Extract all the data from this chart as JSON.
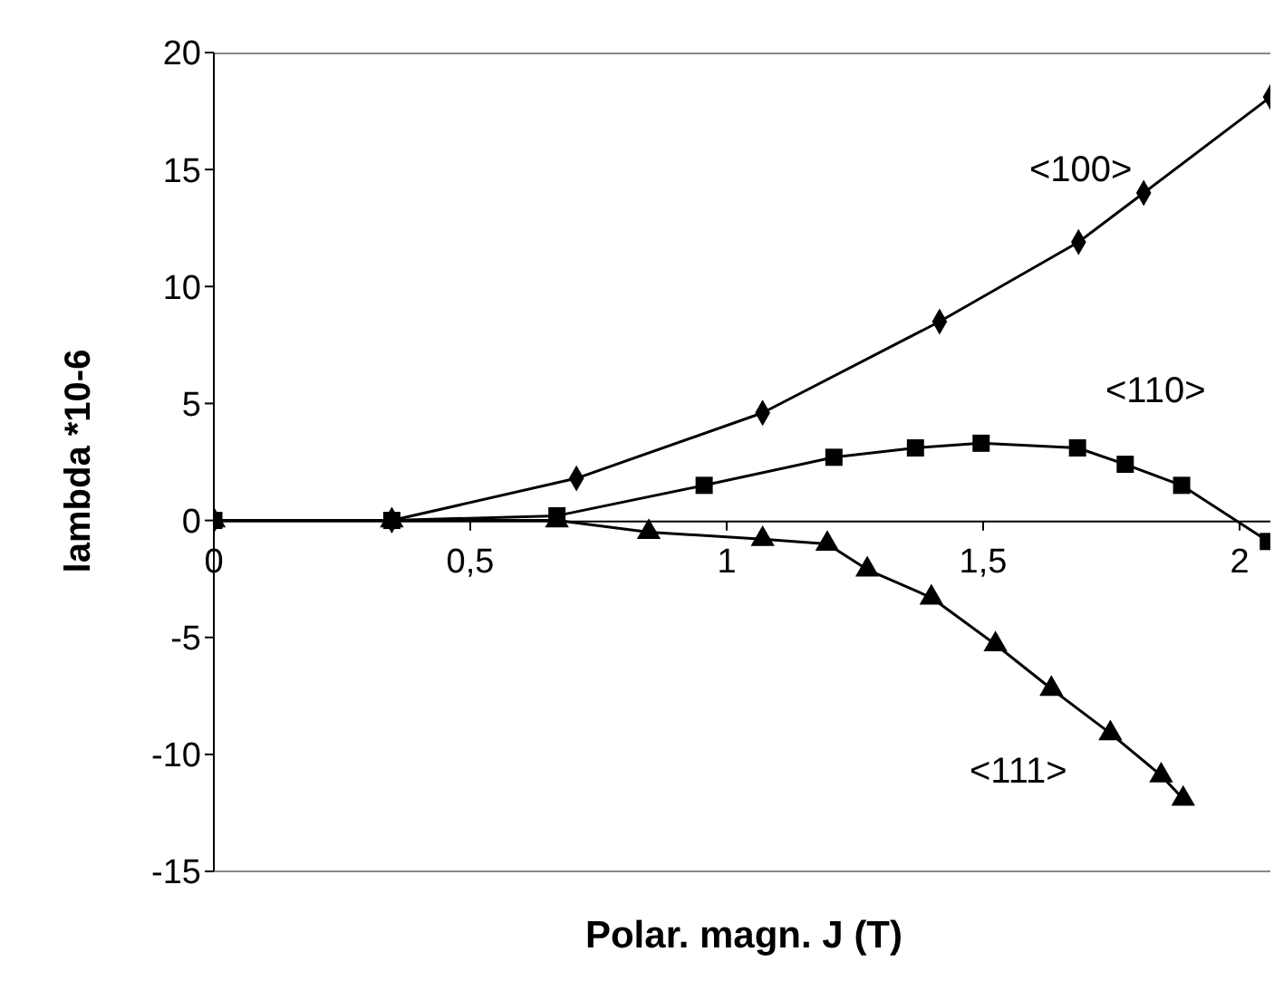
{
  "chart_data": {
    "type": "line",
    "xlabel": "Polar. magn. J (T)",
    "ylabel": "lambda *10-6",
    "xlim": [
      0,
      2.06
    ],
    "xticks": [
      0,
      {
        "value": 0.5,
        "label": "0,5"
      },
      1,
      {
        "value": 1.5,
        "label": "1,5"
      },
      2
    ],
    "ylim": [
      -15,
      20
    ],
    "yticks": [
      -15,
      -10,
      -5,
      0,
      5,
      10,
      15,
      20
    ],
    "grid": false,
    "legend": false,
    "series": [
      {
        "name": "<100>",
        "color": "#000000",
        "marker": "diamond",
        "x": [
          0,
          0.347,
          0.707,
          1.07,
          1.415,
          1.686,
          1.813,
          2.06
        ],
        "values": [
          0,
          0,
          1.8,
          4.6,
          8.5,
          11.9,
          14.0,
          18.1
        ]
      },
      {
        "name": "<110>",
        "color": "#000000",
        "marker": "square",
        "x": [
          0,
          0.347,
          0.669,
          0.956,
          1.209,
          1.368,
          1.496,
          1.684,
          1.777,
          1.887,
          2.056
        ],
        "values": [
          0,
          0,
          0.2,
          1.5,
          2.7,
          3.1,
          3.3,
          3.1,
          2.4,
          1.5,
          -0.9
        ]
      },
      {
        "name": "<111>",
        "color": "#000000",
        "marker": "triangle",
        "x": [
          0,
          0.347,
          0.669,
          0.848,
          1.07,
          1.196,
          1.274,
          1.399,
          1.524,
          1.633,
          1.748,
          1.847,
          1.89
        ],
        "values": [
          0,
          0,
          0,
          -0.5,
          -0.8,
          -1.0,
          -2.1,
          -3.3,
          -5.3,
          -7.2,
          -9.1,
          -10.9,
          -11.9
        ]
      }
    ]
  }
}
